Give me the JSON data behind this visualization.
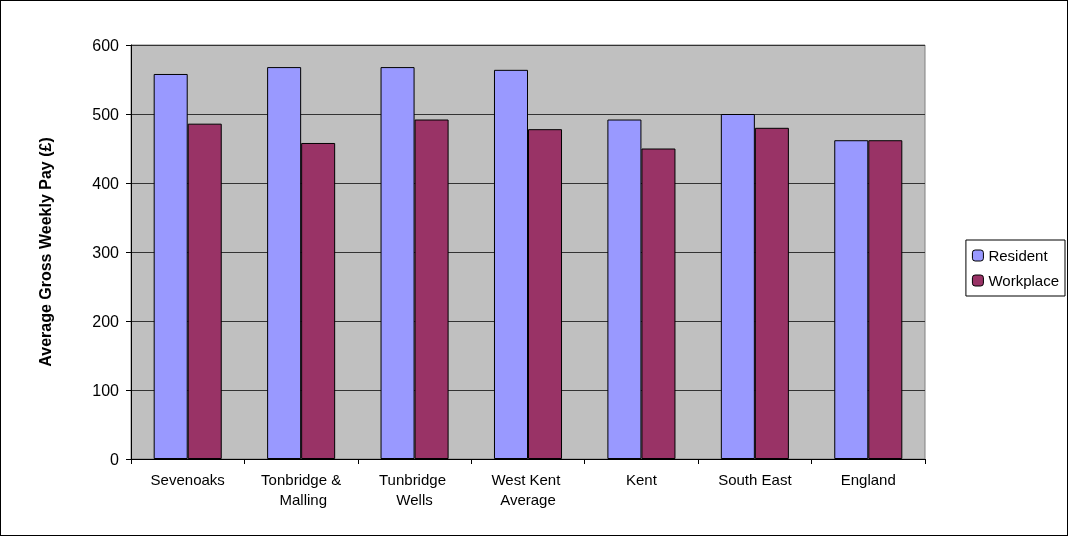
{
  "chart_data": {
    "type": "bar",
    "ylabel": "Average Gross Weekly Pay (£)",
    "categories": [
      "Sevenoaks",
      "Tonbridge & Malling",
      "Tunbridge Wells",
      "West Kent Average",
      "Kent",
      "South East",
      "England"
    ],
    "series": [
      {
        "name": "Resident",
        "color": "#9999ff",
        "values": [
          558,
          568,
          568,
          564,
          492,
          500,
          462
        ]
      },
      {
        "name": "Workplace",
        "color": "#993366",
        "values": [
          486,
          458,
          492,
          478,
          450,
          480,
          462
        ]
      }
    ],
    "ylim": [
      0,
      600
    ],
    "yticks": [
      0,
      100,
      200,
      300,
      400,
      500,
      600
    ],
    "grid": "y",
    "legend": "right"
  }
}
